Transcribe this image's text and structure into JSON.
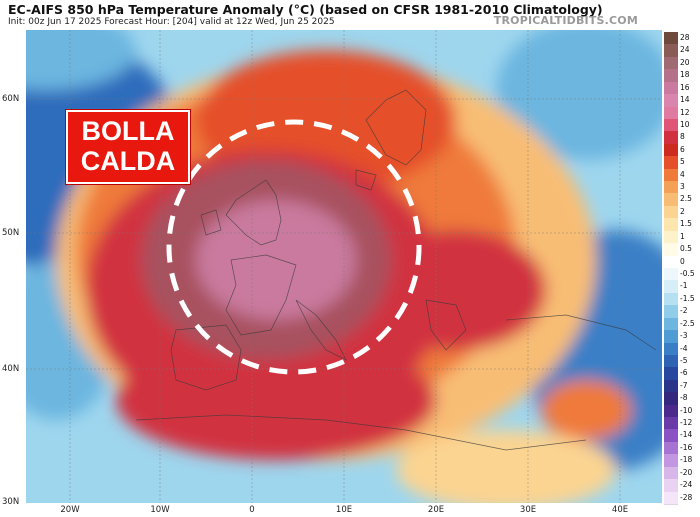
{
  "header": {
    "title": "EC-AIFS 850 hPa Temperature Anomaly (°C) (based on CFSR 1981-2010 Climatology)",
    "subtitle": "Init: 00z Jun 17 2025   Forecast Hour: [204]   valid at 12z Wed, Jun 25 2025",
    "brand": "TROPICALTIDBITS.COM"
  },
  "callout": {
    "line1": "BOLLA",
    "line2": "CALDA"
  },
  "axes": {
    "lat_labels": [
      "60N",
      "50N",
      "40N",
      "30N"
    ],
    "lon_labels": [
      "20W",
      "10W",
      "0",
      "10E",
      "20E",
      "30E",
      "40E"
    ]
  },
  "legend": {
    "items": [
      {
        "label": "28",
        "color": "#6d4a3b"
      },
      {
        "label": "24",
        "color": "#8a5c56"
      },
      {
        "label": "20",
        "color": "#a06a72"
      },
      {
        "label": "18",
        "color": "#b5718a"
      },
      {
        "label": "16",
        "color": "#c97a9e"
      },
      {
        "label": "14",
        "color": "#d985ad"
      },
      {
        "label": "12",
        "color": "#e07aa0"
      },
      {
        "label": "10",
        "color": "#e05577"
      },
      {
        "label": "8",
        "color": "#d1303f"
      },
      {
        "label": "6",
        "color": "#cd2a20"
      },
      {
        "label": "5",
        "color": "#e5502a"
      },
      {
        "label": "4",
        "color": "#ef7a3a"
      },
      {
        "label": "3",
        "color": "#f4a056"
      },
      {
        "label": "2.5",
        "color": "#f8bd75"
      },
      {
        "label": "2",
        "color": "#fbd491"
      },
      {
        "label": "1.5",
        "color": "#fde6ad"
      },
      {
        "label": "1",
        "color": "#fef2cb"
      },
      {
        "label": "0.5",
        "color": "#fffbe6"
      },
      {
        "label": "0",
        "color": "#ffffff"
      },
      {
        "label": "-0.5",
        "color": "#eef8fc"
      },
      {
        "label": "-1",
        "color": "#d5eef8"
      },
      {
        "label": "-1.5",
        "color": "#b4e0f2"
      },
      {
        "label": "-2",
        "color": "#8fcde9"
      },
      {
        "label": "-2.5",
        "color": "#6cb6e0"
      },
      {
        "label": "-3",
        "color": "#4f9cd5"
      },
      {
        "label": "-4",
        "color": "#3a7fc6"
      },
      {
        "label": "-5",
        "color": "#2d63b2"
      },
      {
        "label": "-6",
        "color": "#27489e"
      },
      {
        "label": "-7",
        "color": "#2a348a"
      },
      {
        "label": "-8",
        "color": "#34287e"
      },
      {
        "label": "-10",
        "color": "#4b2a8c"
      },
      {
        "label": "-12",
        "color": "#6a3aa8"
      },
      {
        "label": "-14",
        "color": "#8a52c2"
      },
      {
        "label": "-16",
        "color": "#a874d4"
      },
      {
        "label": "-18",
        "color": "#c296e0"
      },
      {
        "label": "-20",
        "color": "#d8b6ea"
      },
      {
        "label": "-24",
        "color": "#ead3f2"
      },
      {
        "label": "-28",
        "color": "#f4e6f8"
      }
    ]
  },
  "colors": {
    "ocean_cold": "#2a63b5",
    "hot": "#c8262b",
    "core": "#b65a7a",
    "callout": "#e8180f"
  }
}
